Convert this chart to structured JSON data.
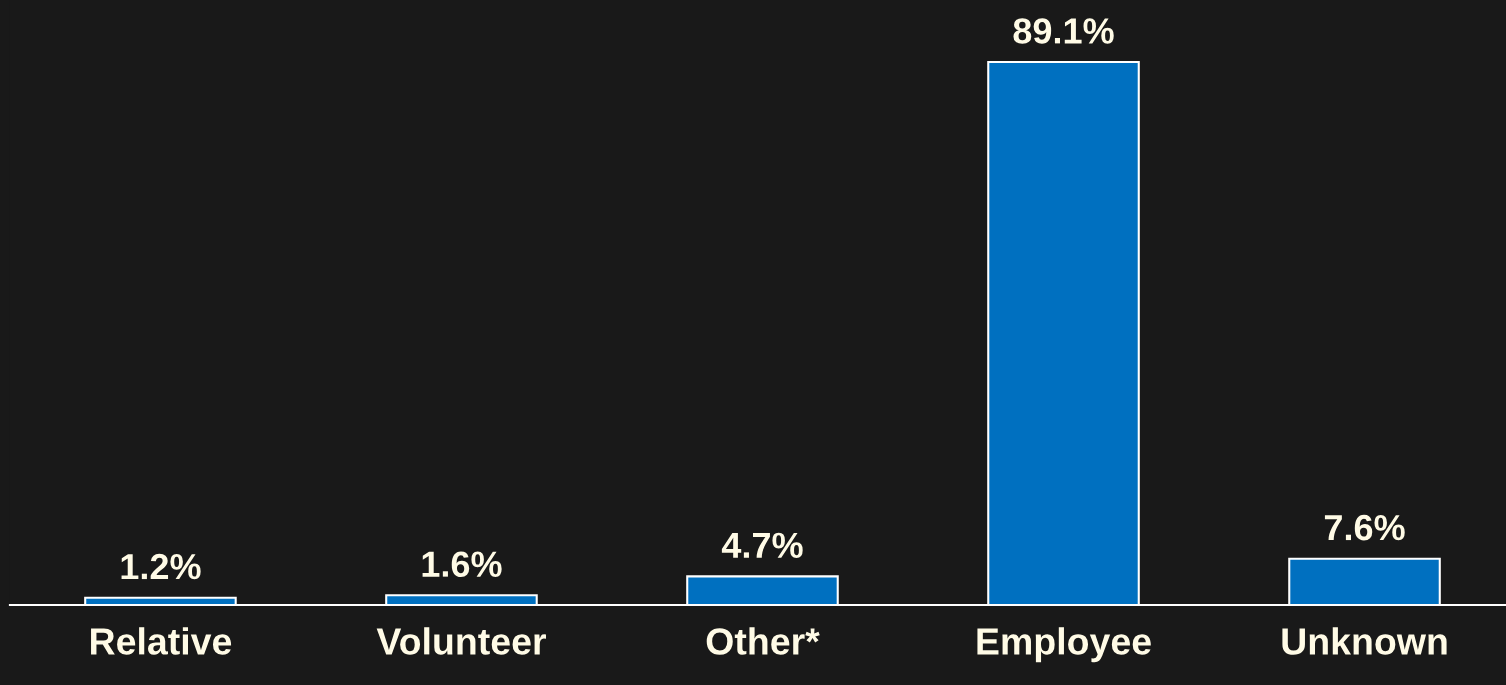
{
  "chart_data": {
    "type": "bar",
    "categories": [
      "Relative",
      "Volunteer",
      "Other*",
      "Employee",
      "Unknown"
    ],
    "values": [
      1.2,
      1.6,
      4.7,
      89.1,
      7.6
    ],
    "value_labels": [
      "1.2%",
      "1.6%",
      "4.7%",
      "89.1%",
      "7.6%"
    ],
    "color": "#0070c0",
    "grid": false,
    "legend": false
  }
}
